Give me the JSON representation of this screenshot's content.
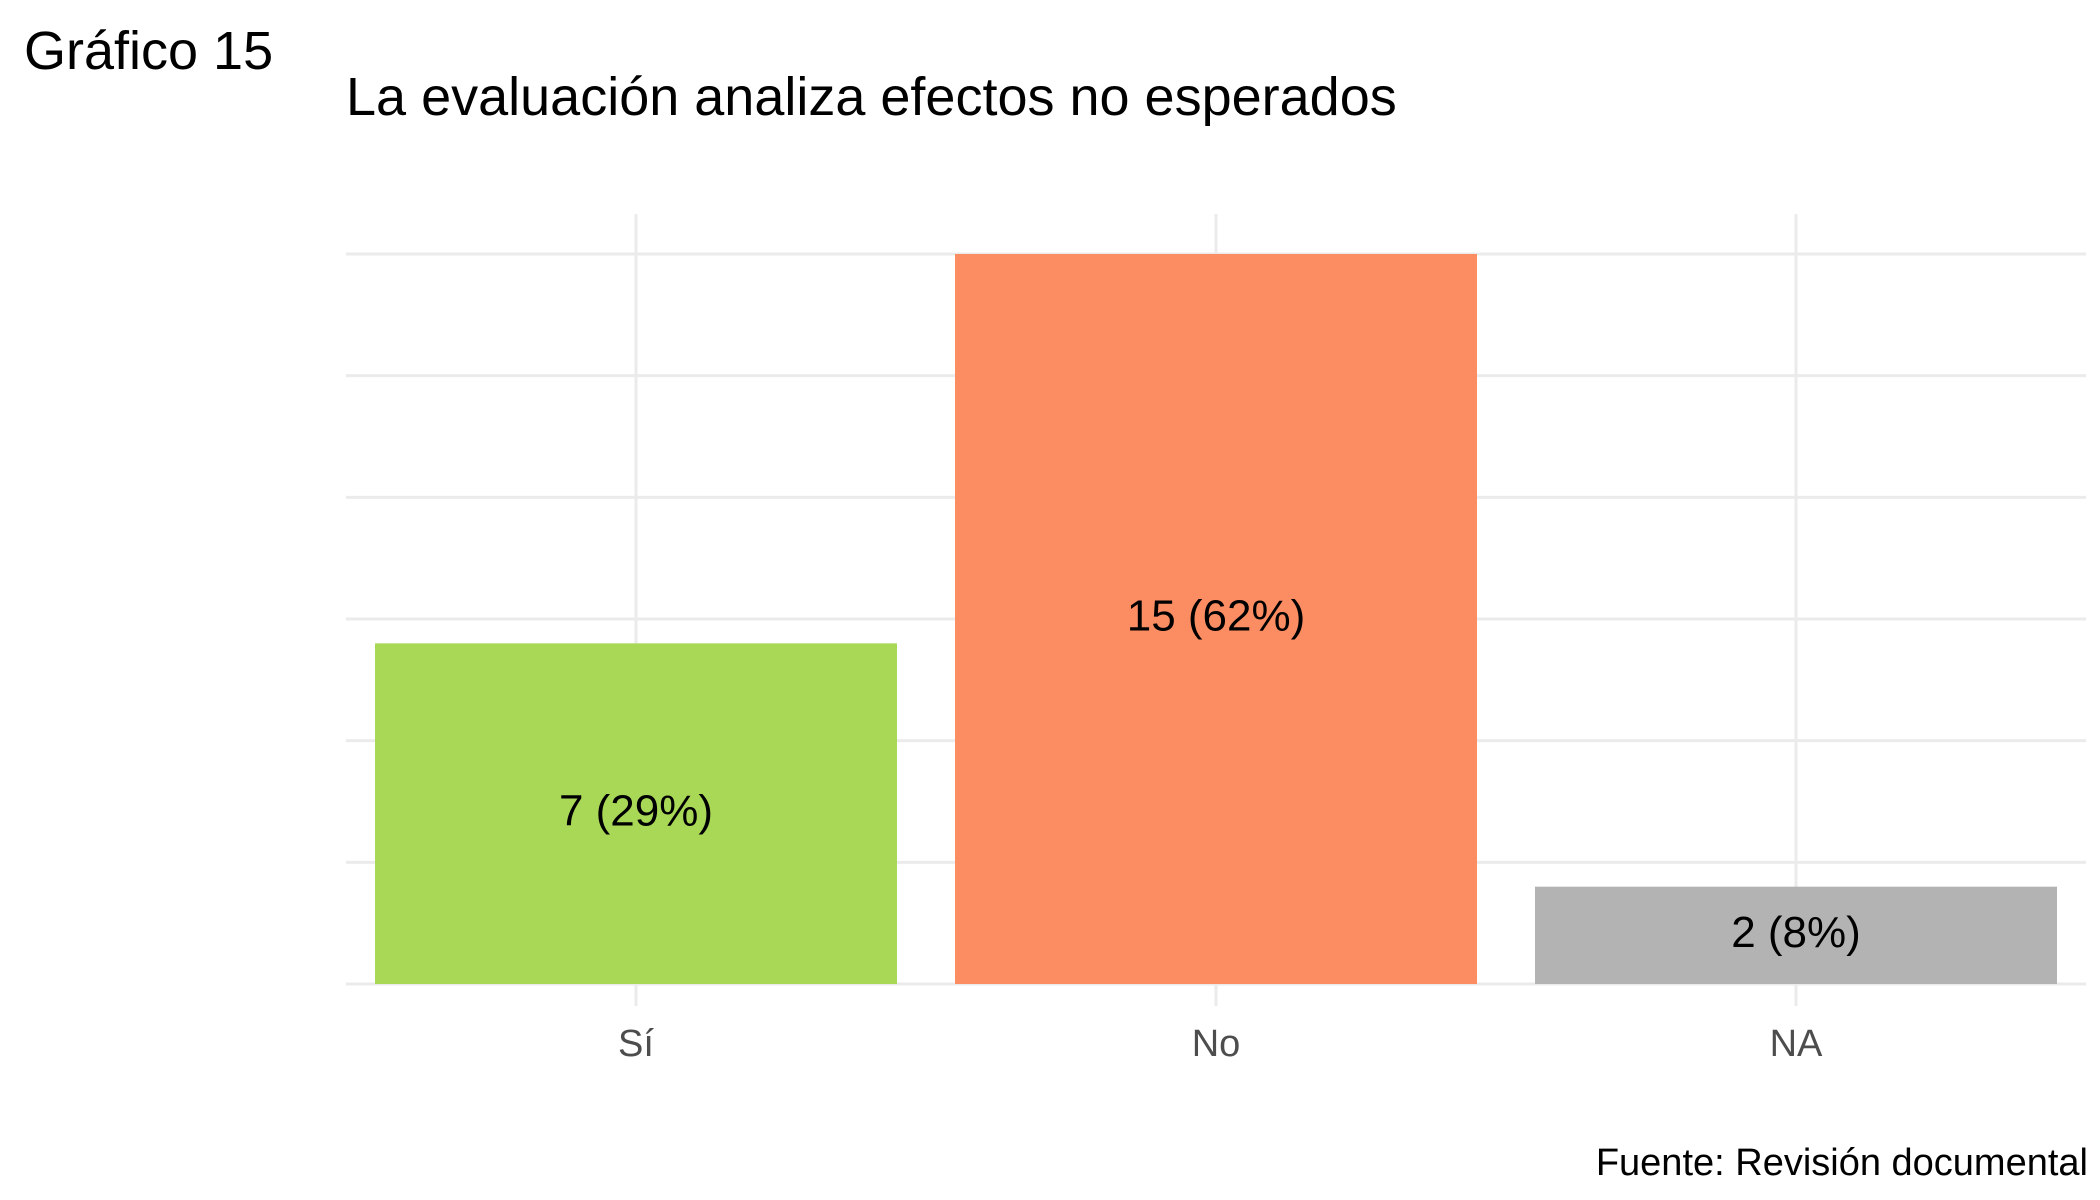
{
  "figure_label": "Gráfico 15",
  "caption": "Fuente: Revisión documental",
  "colors": {
    "Sí": "#a8d856",
    "No": "#fc8d62",
    "NA": "#b3b3b3",
    "grid": "#ebebeb",
    "tick_text": "#4d4d4d"
  },
  "chart_data": {
    "type": "bar",
    "title": "La evaluación analiza efectos no esperados",
    "xlabel": "",
    "ylabel": "",
    "categories": [
      "Sí",
      "No",
      "NA"
    ],
    "values": [
      7,
      15,
      2
    ],
    "labels": [
      "7 (29%)",
      "15 (62%)",
      "2 (8%)"
    ],
    "ylim": [
      0,
      15
    ],
    "grid": true,
    "legend": "none"
  }
}
